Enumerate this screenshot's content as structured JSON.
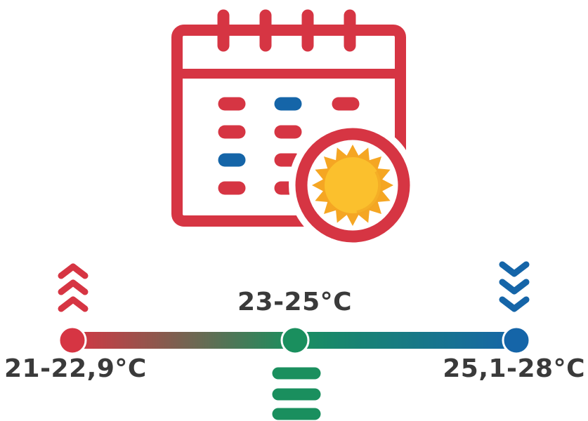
{
  "scale": {
    "low": {
      "label": "21-22,9°C",
      "trend": "increase",
      "trend_icon": "chevrons-up-icon",
      "color": "#d63543"
    },
    "mid": {
      "label": "23-25°C",
      "trend": "keep",
      "trend_icon": "equal-bars-icon",
      "color": "#1a8f5e"
    },
    "high": {
      "label": "25,1-28°C",
      "trend": "decrease",
      "trend_icon": "chevrons-down-icon",
      "color": "#1565a8"
    }
  },
  "calendar": {
    "icon": "calendar-sun-icon",
    "outline_color": "#d63543",
    "accent_color": "#1565a8",
    "sun_color": "#fbc02d",
    "sun_ray_color": "#f5a623"
  }
}
